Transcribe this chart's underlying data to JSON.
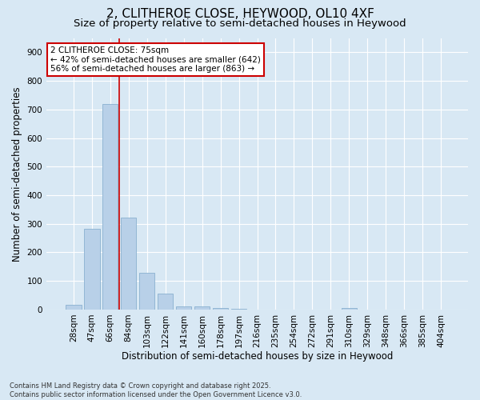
{
  "title_line1": "2, CLITHEROE CLOSE, HEYWOOD, OL10 4XF",
  "title_line2": "Size of property relative to semi-detached houses in Heywood",
  "xlabel": "Distribution of semi-detached houses by size in Heywood",
  "ylabel": "Number of semi-detached properties",
  "categories": [
    "28sqm",
    "47sqm",
    "66sqm",
    "84sqm",
    "103sqm",
    "122sqm",
    "141sqm",
    "160sqm",
    "178sqm",
    "197sqm",
    "216sqm",
    "235sqm",
    "254sqm",
    "272sqm",
    "291sqm",
    "310sqm",
    "329sqm",
    "348sqm",
    "366sqm",
    "385sqm",
    "404sqm"
  ],
  "values": [
    18,
    282,
    720,
    322,
    130,
    55,
    12,
    10,
    5,
    2,
    1,
    0,
    0,
    0,
    0,
    5,
    0,
    0,
    0,
    0,
    0
  ],
  "bar_color": "#b8d0e8",
  "bar_edge_color": "#8ab0d0",
  "annotation_text": "2 CLITHEROE CLOSE: 75sqm\n← 42% of semi-detached houses are smaller (642)\n56% of semi-detached houses are larger (863) →",
  "annotation_box_color": "#ffffff",
  "annotation_box_edge": "#cc0000",
  "bg_color": "#d8e8f4",
  "plot_bg_color": "#d8e8f4",
  "grid_color": "#ffffff",
  "ylim": [
    0,
    950
  ],
  "yticks": [
    0,
    100,
    200,
    300,
    400,
    500,
    600,
    700,
    800,
    900
  ],
  "footnote": "Contains HM Land Registry data © Crown copyright and database right 2025.\nContains public sector information licensed under the Open Government Licence v3.0.",
  "title_fontsize": 11,
  "subtitle_fontsize": 9.5,
  "axis_label_fontsize": 8.5,
  "tick_fontsize": 7.5,
  "annot_fontsize": 7.5,
  "footnote_fontsize": 6.0
}
